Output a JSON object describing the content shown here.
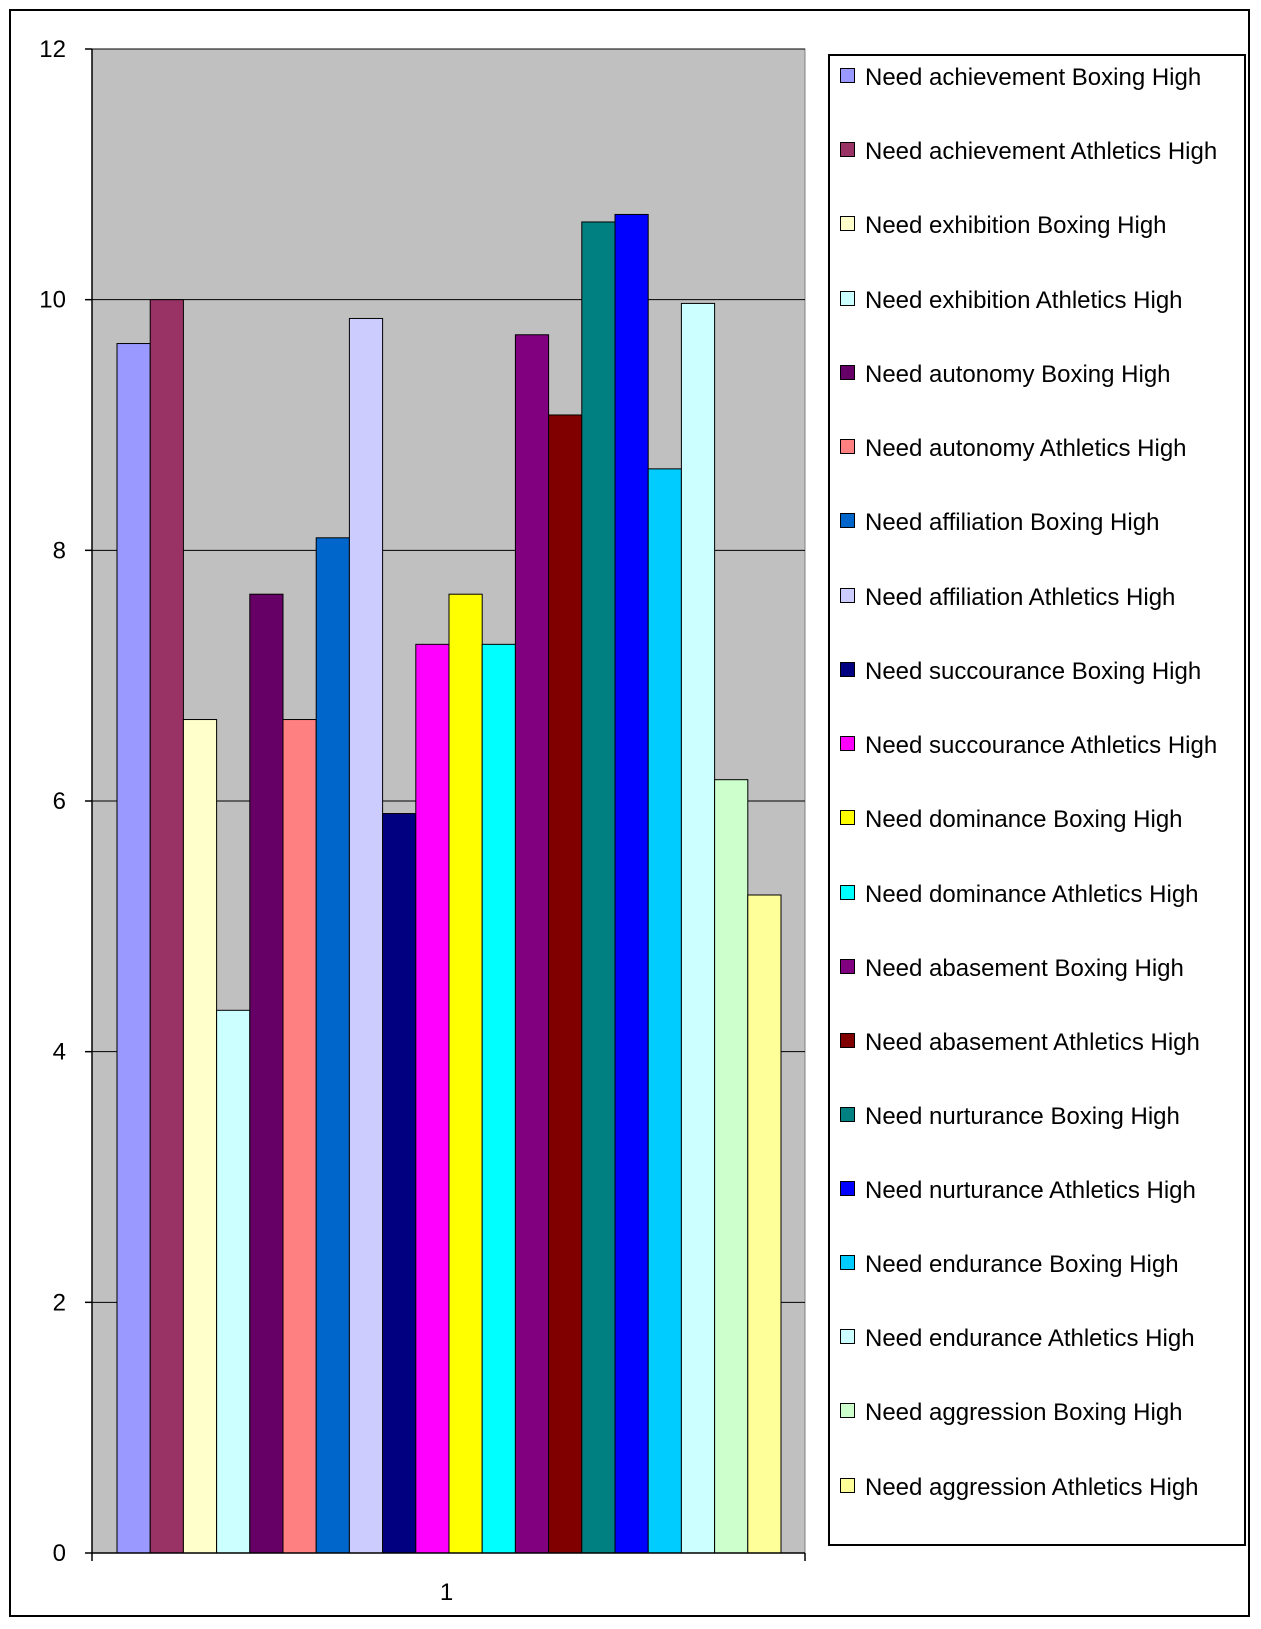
{
  "chart_data": {
    "type": "bar",
    "categories": [
      "1"
    ],
    "ylim": [
      0,
      12
    ],
    "yticks": [
      0,
      2,
      4,
      6,
      8,
      10,
      12
    ],
    "grid": true,
    "legend_position": "right",
    "plot_background": "#C0C0C0",
    "series": [
      {
        "name": "Need achievement Boxing High",
        "values": [
          9.65
        ],
        "color": "#9999FF"
      },
      {
        "name": "Need achievement Athletics High",
        "values": [
          10.0
        ],
        "color": "#993366"
      },
      {
        "name": "Need exhibition Boxing High",
        "values": [
          6.65
        ],
        "color": "#FFFFCC"
      },
      {
        "name": "Need exhibition Athletics High",
        "values": [
          4.33
        ],
        "color": "#CCFFFF"
      },
      {
        "name": "Need autonomy Boxing High",
        "values": [
          7.65
        ],
        "color": "#660066"
      },
      {
        "name": "Need autonomy Athletics High",
        "values": [
          6.65
        ],
        "color": "#FF8080"
      },
      {
        "name": "Need affiliation Boxing High",
        "values": [
          8.1
        ],
        "color": "#0066CC"
      },
      {
        "name": "Need affiliation Athletics High",
        "values": [
          9.85
        ],
        "color": "#CCCCFF"
      },
      {
        "name": "Need succourance Boxing High",
        "values": [
          5.9
        ],
        "color": "#000080"
      },
      {
        "name": "Need succourance Athletics High",
        "values": [
          7.25
        ],
        "color": "#FF00FF"
      },
      {
        "name": "Need dominance Boxing High",
        "values": [
          7.65
        ],
        "color": "#FFFF00"
      },
      {
        "name": "Need dominance Athletics High",
        "values": [
          7.25
        ],
        "color": "#00FFFF"
      },
      {
        "name": "Need abasement Boxing High",
        "values": [
          9.72
        ],
        "color": "#800080"
      },
      {
        "name": "Need abasement Athletics High",
        "values": [
          9.08
        ],
        "color": "#800000"
      },
      {
        "name": "Need nurturance Boxing High",
        "values": [
          10.62
        ],
        "color": "#008080"
      },
      {
        "name": "Need nurturance Athletics High",
        "values": [
          10.68
        ],
        "color": "#0000FF"
      },
      {
        "name": "Need endurance Boxing High",
        "values": [
          8.65
        ],
        "color": "#00CCFF"
      },
      {
        "name": "Need endurance Athletics High",
        "values": [
          9.97
        ],
        "color": "#CCFFFF"
      },
      {
        "name": "Need aggression Boxing High",
        "values": [
          6.17
        ],
        "color": "#CCFFCC"
      },
      {
        "name": "Need aggression Athletics High",
        "values": [
          5.25
        ],
        "color": "#FFFF99"
      }
    ]
  }
}
